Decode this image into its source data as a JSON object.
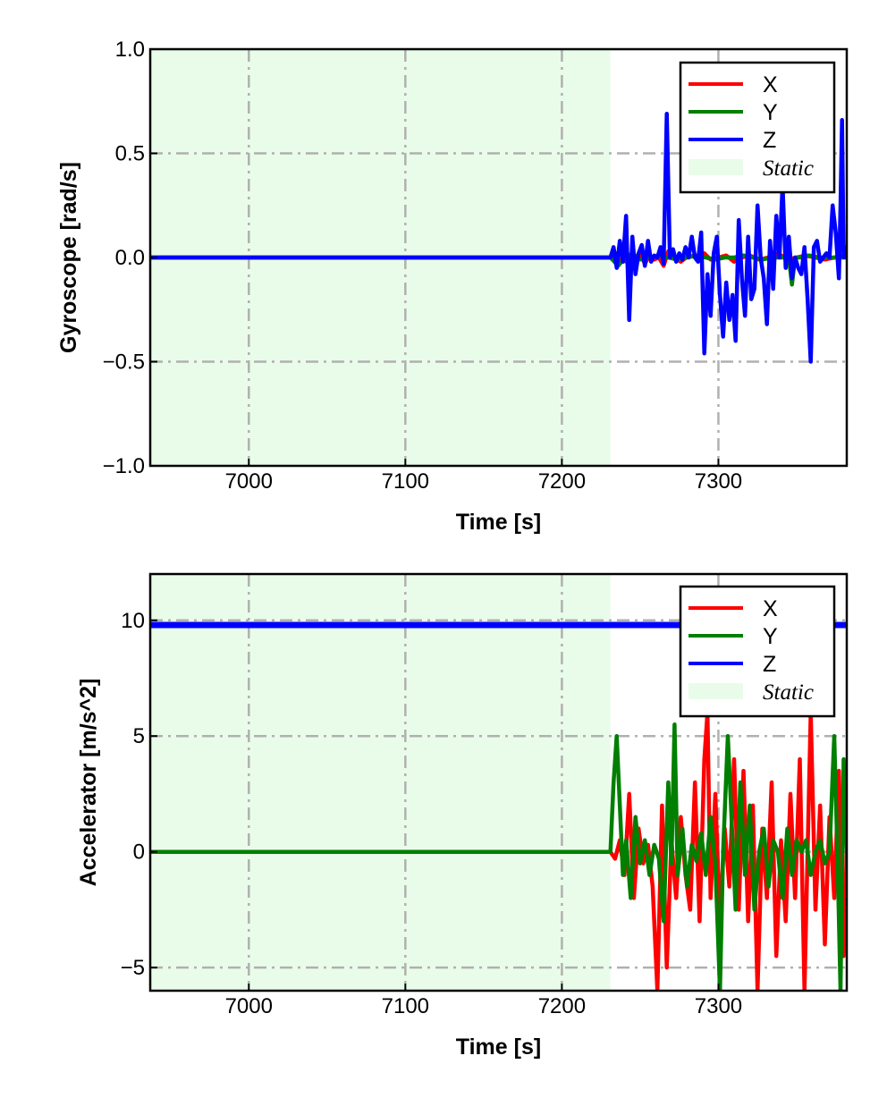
{
  "colors": {
    "X": "#ff0000",
    "Y": "#007f00",
    "Z": "#0000ff",
    "static_fill": "#e9fce9",
    "grid": "#b0b0b0"
  },
  "chart_data": [
    {
      "type": "line",
      "title": "",
      "xlabel": "Time [s]",
      "ylabel": "Gyroscope [rad/s]",
      "xlim": [
        6937,
        7382
      ],
      "ylim": [
        -1.0,
        1.0
      ],
      "xticks": [
        7000,
        7100,
        7200,
        7300
      ],
      "xtick_labels": [
        "7000",
        "7100",
        "7200",
        "7300"
      ],
      "yticks": [
        -1.0,
        -0.5,
        0.0,
        0.5,
        1.0
      ],
      "ytick_labels": [
        "−1.0",
        "−0.5",
        "0.0",
        "0.5",
        "1.0"
      ],
      "grid": true,
      "legend_position": "top-right",
      "static_region": {
        "label": "Static",
        "x": [
          6937,
          7231
        ]
      },
      "series": [
        {
          "name": "X",
          "x": [
            6937,
            7231,
            7233,
            7235,
            7237,
            7239,
            7241,
            7243,
            7245,
            7248,
            7250,
            7253,
            7256,
            7259,
            7262,
            7265,
            7268,
            7271,
            7276,
            7281,
            7287,
            7291,
            7295,
            7300,
            7305,
            7310,
            7315,
            7320,
            7326,
            7332,
            7338,
            7344,
            7350,
            7356,
            7362,
            7368,
            7374,
            7380,
            7382
          ],
          "y": [
            0.0,
            0.0,
            -0.01,
            0.02,
            -0.03,
            0.0,
            -0.02,
            0.01,
            -0.02,
            0.0,
            0.02,
            -0.03,
            0.01,
            -0.01,
            0.0,
            -0.04,
            0.03,
            0.0,
            -0.02,
            0.01,
            0.0,
            0.02,
            -0.01,
            0.0,
            0.01,
            -0.02,
            0.0,
            0.01,
            -0.01,
            0.0,
            0.02,
            -0.01,
            0.0,
            0.01,
            0.0,
            -0.01,
            0.0,
            0.01,
            0.0
          ]
        },
        {
          "name": "Y",
          "x": [
            6937,
            7231,
            7236,
            7240,
            7245,
            7250,
            7256,
            7262,
            7268,
            7274,
            7280,
            7286,
            7292,
            7298,
            7304,
            7310,
            7316,
            7322,
            7328,
            7334,
            7340,
            7345,
            7347,
            7349,
            7352,
            7358,
            7364,
            7370,
            7376,
            7382
          ],
          "y": [
            0.0,
            0.0,
            -0.04,
            0.0,
            0.02,
            -0.01,
            0.0,
            0.01,
            0.0,
            -0.01,
            0.0,
            0.01,
            0.0,
            -0.01,
            0.0,
            0.0,
            0.01,
            0.0,
            -0.01,
            0.0,
            0.0,
            0.0,
            -0.13,
            0.0,
            0.0,
            0.01,
            0.0,
            0.0,
            0.0,
            0.0
          ]
        },
        {
          "name": "Z",
          "x": [
            6937,
            7231,
            7233,
            7235,
            7237,
            7239,
            7241,
            7243,
            7245,
            7247,
            7249,
            7251,
            7253,
            7255,
            7257,
            7259,
            7261,
            7263,
            7265,
            7267,
            7269,
            7271,
            7273,
            7275,
            7277,
            7279,
            7281,
            7283,
            7285,
            7287,
            7289,
            7291,
            7293,
            7295,
            7297,
            7299,
            7301,
            7303,
            7305,
            7307,
            7309,
            7311,
            7313,
            7315,
            7317,
            7319,
            7321,
            7323,
            7325,
            7327,
            7329,
            7331,
            7333,
            7335,
            7337,
            7339,
            7341,
            7343,
            7345,
            7347,
            7349,
            7351,
            7353,
            7355,
            7357,
            7359,
            7361,
            7363,
            7365,
            7367,
            7369,
            7371,
            7373,
            7375,
            7377,
            7378,
            7379,
            7380,
            7381,
            7382
          ],
          "y": [
            0.0,
            0.0,
            0.05,
            -0.05,
            0.08,
            -0.02,
            0.2,
            -0.3,
            0.1,
            -0.08,
            0.02,
            0.06,
            -0.04,
            0.08,
            -0.02,
            0.01,
            0.0,
            0.05,
            -0.03,
            0.69,
            0.0,
            0.04,
            -0.02,
            0.02,
            -0.01,
            0.05,
            0.0,
            0.1,
            0.0,
            -0.02,
            0.12,
            -0.46,
            -0.08,
            -0.28,
            0.02,
            0.1,
            -0.18,
            -0.38,
            -0.12,
            -0.3,
            -0.18,
            -0.4,
            0.18,
            -0.1,
            -0.28,
            0.1,
            -0.2,
            -0.15,
            0.25,
            0.0,
            -0.1,
            -0.32,
            0.08,
            -0.15,
            0.2,
            0.0,
            0.35,
            -0.05,
            0.1,
            -0.1,
            0.0,
            -0.05,
            -0.08,
            0.05,
            -0.2,
            -0.5,
            0.05,
            0.08,
            -0.02,
            0.0,
            0.02,
            0.0,
            0.25,
            0.12,
            -0.1,
            0.25,
            0.66,
            0.0,
            0.05,
            0.0
          ]
        }
      ]
    },
    {
      "type": "line",
      "title": "",
      "xlabel": "Time [s]",
      "ylabel": "Accelerator [m/s^2]",
      "xlim": [
        6937,
        7382
      ],
      "ylim": [
        -6,
        12
      ],
      "xticks": [
        7000,
        7100,
        7200,
        7300
      ],
      "xtick_labels": [
        "7000",
        "7100",
        "7200",
        "7300"
      ],
      "yticks": [
        -5,
        0,
        5,
        10
      ],
      "ytick_labels": [
        "−5",
        "0",
        "5",
        "10"
      ],
      "grid": true,
      "legend_position": "top-right",
      "static_region": {
        "label": "Static",
        "x": [
          6937,
          7231
        ]
      },
      "series": [
        {
          "name": "X",
          "x": [
            6937,
            7231,
            7234,
            7237,
            7240,
            7243,
            7246,
            7249,
            7252,
            7255,
            7258,
            7261,
            7264,
            7267,
            7270,
            7273,
            7276,
            7279,
            7282,
            7285,
            7288,
            7291,
            7293,
            7295,
            7298,
            7301,
            7304,
            7307,
            7310,
            7313,
            7316,
            7319,
            7322,
            7325,
            7328,
            7331,
            7334,
            7337,
            7340,
            7343,
            7346,
            7349,
            7352,
            7355,
            7357,
            7359,
            7362,
            7365,
            7368,
            7371,
            7374,
            7377,
            7380,
            7382
          ],
          "y": [
            0.0,
            0.0,
            -0.3,
            0.5,
            -1.0,
            2.5,
            -2.0,
            1.0,
            -0.5,
            0.3,
            -1.5,
            -6.0,
            2.0,
            -5.0,
            0.5,
            -2.0,
            1.5,
            -1.0,
            -2.5,
            3.0,
            -3.0,
            4.0,
            6.0,
            -2.0,
            2.5,
            -3.0,
            1.0,
            -1.5,
            4.0,
            -2.5,
            3.5,
            -3.0,
            2.0,
            -6.0,
            1.0,
            -2.0,
            3.0,
            -4.5,
            0.5,
            -3.0,
            2.5,
            -2.0,
            4.0,
            -6.0,
            0.0,
            6.0,
            -2.5,
            2.0,
            -4.0,
            1.5,
            -2.0,
            3.5,
            -4.5,
            0.0
          ]
        },
        {
          "name": "Y",
          "x": [
            6937,
            7231,
            7233,
            7235,
            7237,
            7239,
            7241,
            7244,
            7247,
            7250,
            7253,
            7256,
            7259,
            7262,
            7265,
            7268,
            7270,
            7272,
            7274,
            7277,
            7280,
            7283,
            7286,
            7289,
            7292,
            7295,
            7298,
            7301,
            7303,
            7306,
            7308,
            7311,
            7314,
            7317,
            7320,
            7323,
            7326,
            7329,
            7332,
            7335,
            7338,
            7341,
            7344,
            7347,
            7350,
            7353,
            7356,
            7359,
            7362,
            7365,
            7368,
            7371,
            7374,
            7376,
            7378,
            7380,
            7382
          ],
          "y": [
            0.0,
            0.0,
            3.0,
            5.0,
            2.0,
            -1.0,
            0.5,
            -2.0,
            1.5,
            -0.5,
            0.5,
            -1.0,
            0.3,
            -0.3,
            -3.0,
            3.0,
            -0.5,
            5.5,
            -1.0,
            1.0,
            -1.5,
            0.3,
            -0.4,
            0.8,
            -1.0,
            1.5,
            -0.5,
            -6.0,
            0.0,
            5.0,
            2.0,
            -2.5,
            3.0,
            -1.0,
            2.0,
            -2.5,
            0.0,
            1.0,
            -1.5,
            0.5,
            0.0,
            -2.0,
            1.0,
            -1.0,
            0.5,
            0.0,
            0.5,
            -1.0,
            0.0,
            0.5,
            -0.5,
            0.0,
            5.0,
            0.0,
            -6.0,
            4.0,
            0.0
          ]
        },
        {
          "name": "Z",
          "x": [
            6937,
            7382
          ],
          "y": [
            9.8,
            9.8
          ]
        }
      ]
    }
  ]
}
